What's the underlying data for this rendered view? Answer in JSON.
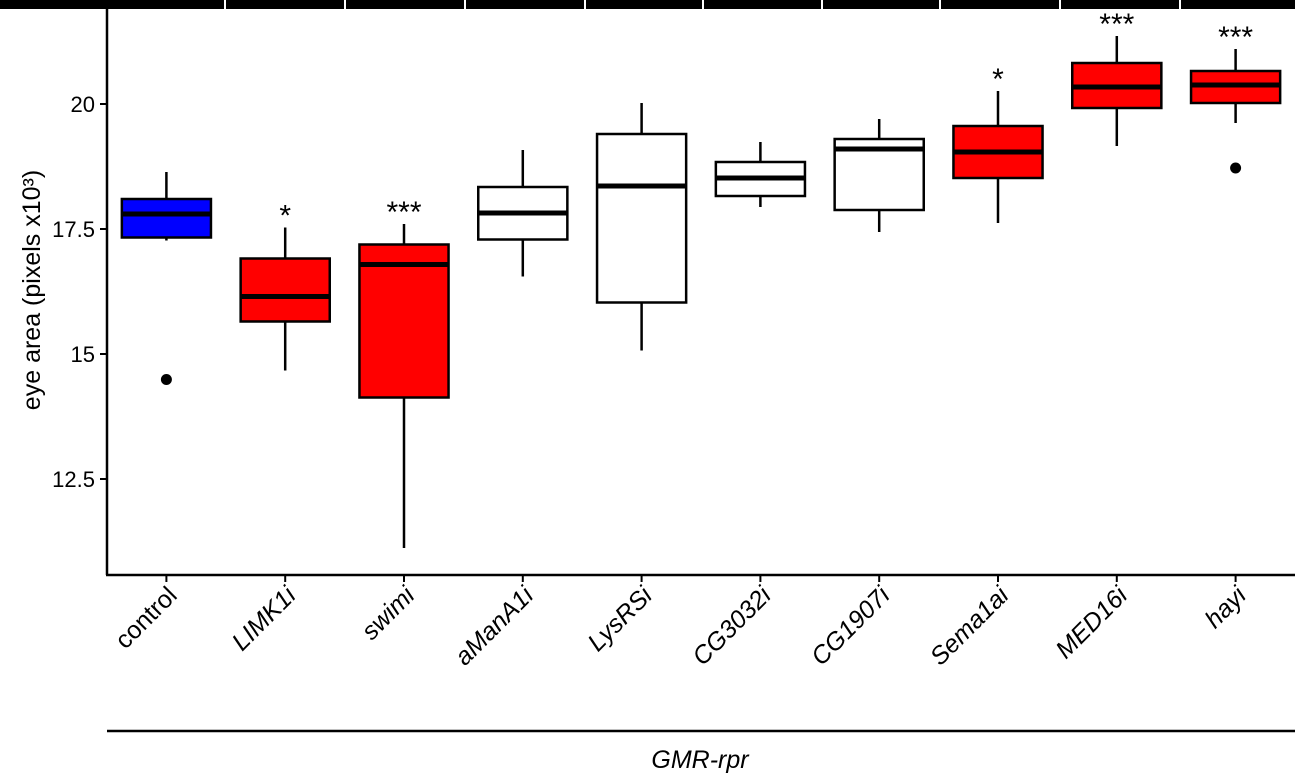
{
  "chart_data": {
    "type": "box",
    "y_label": "eye area (pixels x10³)",
    "x_label": "GMR-rpr",
    "ylim": [
      10.58,
      21.9
    ],
    "yticks": [
      12.5,
      15,
      17.5,
      20
    ],
    "categories": [
      "control",
      "LIMK1i",
      "swimi",
      "aManA1i",
      "LysRSi",
      "CG3032i",
      "CG1907i",
      "Sema1ai",
      "MED16i",
      "hayi"
    ],
    "boxes": [
      {
        "whislo": 17.27,
        "q1": 17.33,
        "med": 17.8,
        "q3": 18.1,
        "whishi": 18.64,
        "fliers": [
          14.49
        ],
        "color": "#0000ff"
      },
      {
        "whislo": 14.67,
        "q1": 15.65,
        "med": 16.15,
        "q3": 16.91,
        "whishi": 17.53,
        "fliers": [],
        "color": "#ff0000"
      },
      {
        "whislo": 11.12,
        "q1": 14.13,
        "med": 16.79,
        "q3": 17.19,
        "whishi": 17.6,
        "fliers": [],
        "color": "#ff0000"
      },
      {
        "whislo": 16.55,
        "q1": 17.29,
        "med": 17.82,
        "q3": 18.34,
        "whishi": 19.08,
        "fliers": [],
        "color": "#ffffff"
      },
      {
        "whislo": 15.07,
        "q1": 16.03,
        "med": 18.36,
        "q3": 19.4,
        "whishi": 20.02,
        "fliers": [],
        "color": "#ffffff"
      },
      {
        "whislo": 17.94,
        "q1": 18.16,
        "med": 18.52,
        "q3": 18.84,
        "whishi": 19.24,
        "fliers": [],
        "color": "#ffffff"
      },
      {
        "whislo": 17.44,
        "q1": 17.88,
        "med": 19.1,
        "q3": 19.3,
        "whishi": 19.7,
        "fliers": [],
        "color": "#ffffff"
      },
      {
        "whislo": 17.62,
        "q1": 18.52,
        "med": 19.04,
        "q3": 19.56,
        "whishi": 20.26,
        "fliers": [],
        "color": "#ff0000"
      },
      {
        "whislo": 19.16,
        "q1": 19.92,
        "med": 20.34,
        "q3": 20.82,
        "whishi": 21.36,
        "fliers": [],
        "color": "#ff0000"
      },
      {
        "whislo": 19.62,
        "q1": 20.02,
        "med": 20.38,
        "q3": 20.66,
        "whishi": 21.1,
        "fliers": [
          18.72
        ],
        "color": "#ff0000"
      }
    ],
    "significance": [
      null,
      "*",
      "***",
      null,
      null,
      null,
      null,
      "*",
      "***",
      "***"
    ]
  }
}
